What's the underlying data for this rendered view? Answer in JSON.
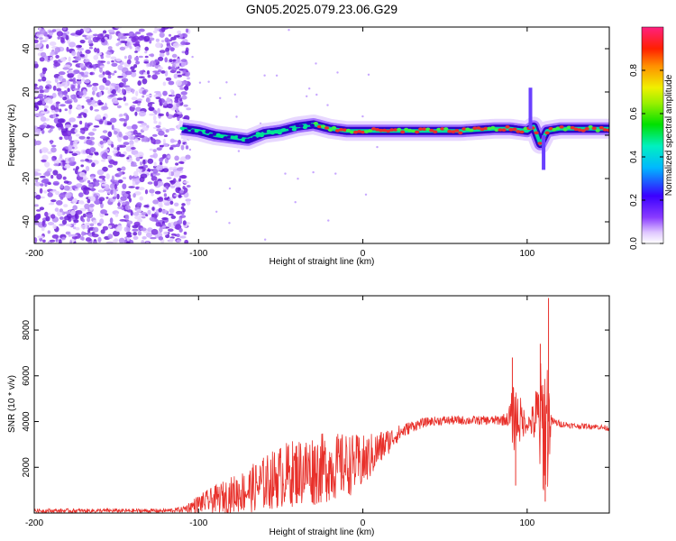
{
  "title": "GN05.2025.079.23.06.G29",
  "colors": {
    "snr_line": "#e8302a",
    "axes": "#000000",
    "scatter_point": "#7b2fe0",
    "ridge_peak": "#e8302a",
    "ridge_mid": "#00d8a0",
    "ridge_outline": "#2a00c8"
  },
  "chart_data": [
    {
      "type": "heatmap",
      "name": "spectrogram",
      "xlabel": "Height of straight line (km)",
      "ylabel": "Frequency (Hz)",
      "xlim": [
        -200,
        150
      ],
      "ylim": [
        -50,
        50
      ],
      "x_ticks": [
        "-200",
        "-100",
        "0",
        "100"
      ],
      "y_ticks": [
        "-40",
        "-20",
        "0",
        "20",
        "40"
      ],
      "colorbar": {
        "label": "Normalized spectral amplitude",
        "range": [
          0,
          1
        ],
        "ticks": [
          "0.0",
          "0.2",
          "0.4",
          "0.6",
          "0.8"
        ],
        "colormap": "rainbow (white→purple→blue→cyan→green→yellow→red→magenta)"
      },
      "features": {
        "noise_region_x": [
          -200,
          -110
        ],
        "ridge": {
          "x": [
            -110,
            -100,
            -90,
            -80,
            -70,
            -60,
            -50,
            -40,
            -30,
            -20,
            -10,
            0,
            20,
            40,
            60,
            80,
            90,
            100,
            104,
            108,
            112,
            120,
            150
          ],
          "y": [
            3,
            2,
            0,
            -1,
            -2,
            1,
            2,
            4,
            5,
            3,
            2,
            2,
            2,
            2,
            2,
            3,
            3,
            2,
            4,
            -4,
            2,
            3,
            3
          ]
        },
        "upper_spike": {
          "x": 102,
          "y_range": [
            3,
            22
          ]
        },
        "lower_spike": {
          "x": 110,
          "y_range": [
            -16,
            0
          ]
        }
      },
      "grid": false
    },
    {
      "type": "line",
      "name": "snr",
      "xlabel": "Height of straight line (km)",
      "ylabel": "SNR (10 * v/v)",
      "xlim": [
        -200,
        150
      ],
      "ylim": [
        0,
        9500
      ],
      "x_ticks": [
        "-200",
        "-100",
        "0",
        "100"
      ],
      "y_ticks": [
        "2000",
        "4000",
        "6000",
        "8000"
      ],
      "series": [
        {
          "x": [
            -200,
            -150,
            -120,
            -110,
            -100,
            -90,
            -80,
            -70,
            -60,
            -50,
            -40,
            -30,
            -20,
            -10,
            0,
            10,
            20,
            30,
            40,
            50,
            60,
            70,
            80,
            88,
            92,
            95,
            100,
            104,
            107,
            110,
            112,
            115,
            120,
            130,
            140,
            150
          ],
          "mean": [
            100,
            100,
            100,
            150,
            400,
            600,
            800,
            1000,
            1300,
            1600,
            1800,
            1900,
            2000,
            2100,
            2200,
            2800,
            3400,
            3800,
            4000,
            4050,
            4050,
            4050,
            4050,
            4100,
            4200,
            4100,
            3900,
            4000,
            4000,
            3900,
            3900,
            4000,
            3900,
            3800,
            3800,
            3700
          ],
          "spread": [
            90,
            90,
            90,
            120,
            400,
            600,
            800,
            1000,
            1200,
            1400,
            1500,
            1600,
            1500,
            1400,
            1200,
            800,
            400,
            250,
            200,
            200,
            200,
            200,
            200,
            300,
            1600,
            1200,
            300,
            900,
            2500,
            3000,
            3500,
            200,
            150,
            120,
            120,
            120
          ]
        }
      ],
      "peaks": [
        {
          "x": 91,
          "y": 6800
        },
        {
          "x": 93,
          "y": 1200
        },
        {
          "x": 108,
          "y": 7400
        },
        {
          "x": 110,
          "y": 1000
        },
        {
          "x": 113,
          "y": 9400
        },
        {
          "x": 111,
          "y": 500
        }
      ],
      "grid": false
    }
  ]
}
